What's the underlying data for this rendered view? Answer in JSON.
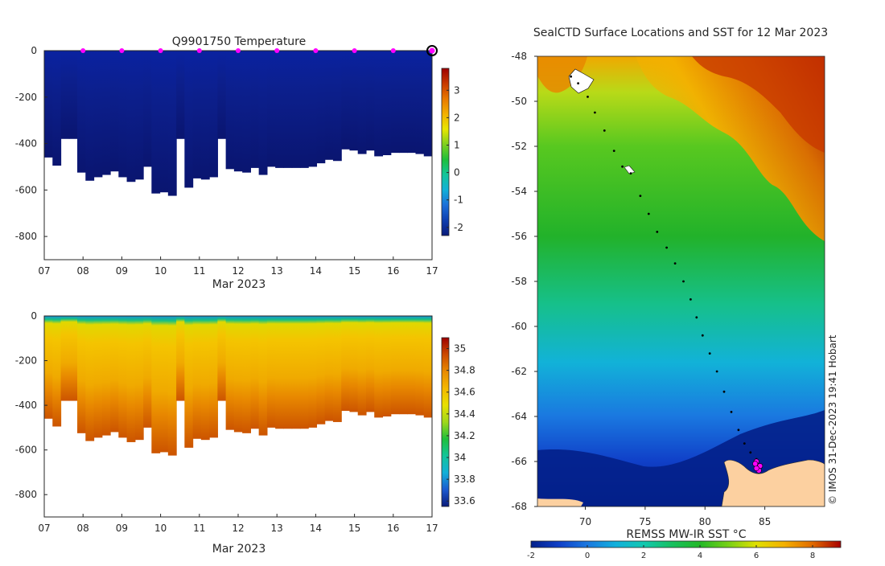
{
  "colors": {
    "temperature_ramp": [
      "#0a1a7a",
      "#0f3fb0",
      "#1c6fd9",
      "#12b0d8",
      "#12c59a",
      "#1fbf3a",
      "#7fd01e",
      "#e8e600",
      "#f2b000",
      "#e87800",
      "#c83a00",
      "#9e0000"
    ],
    "salinity_ramp": [
      "#0a1a7a",
      "#1c5ad0",
      "#12b0d8",
      "#12c59a",
      "#1fbf3a",
      "#9fd81a",
      "#e8e000",
      "#f4b800",
      "#e88a00",
      "#cc4a00",
      "#9e0000"
    ],
    "sst_ramp": [
      "#03208a",
      "#1040c8",
      "#1b78e0",
      "#12b0dc",
      "#12c8b0",
      "#18c060",
      "#22b826",
      "#76d016",
      "#e0e000",
      "#f4b000",
      "#e06a00",
      "#a80000"
    ],
    "land": "#fcd0a0",
    "marker": "#ff00ff",
    "track": "#000000",
    "background": "#ffffff"
  },
  "chart_data": [
    {
      "id": "temperature",
      "type": "heatmap",
      "title": "Q9901750  Temperature",
      "xlabel": "Mar 2023",
      "ylabel": "",
      "x_ticks": [
        "07",
        "08",
        "09",
        "10",
        "11",
        "12",
        "13",
        "14",
        "15",
        "16",
        "17"
      ],
      "y_ticks": [
        "0",
        "-200",
        "-400",
        "-600",
        "-800"
      ],
      "y_tick_values": [
        0,
        -200,
        -400,
        -600,
        -800
      ],
      "xlim": [
        7,
        17
      ],
      "ylim": [
        -900,
        0
      ],
      "profile_bottom_depths": [
        460,
        495,
        380,
        380,
        525,
        560,
        545,
        535,
        520,
        545,
        565,
        555,
        500,
        615,
        610,
        625,
        380,
        590,
        550,
        555,
        545,
        380,
        510,
        520,
        525,
        505,
        535,
        500,
        505,
        505,
        505,
        505,
        500,
        485,
        470,
        475,
        425,
        430,
        445,
        430,
        455,
        450,
        440,
        440,
        440,
        445,
        455
      ],
      "surface_markers_day": [
        8,
        9,
        10,
        11,
        12,
        13,
        14,
        15,
        16,
        17
      ],
      "colorbar": {
        "ticks": [
          "3",
          "2",
          "1",
          "0",
          "-1",
          "-2"
        ],
        "tick_values": [
          3,
          2,
          1,
          0,
          -1,
          -2
        ],
        "range": [
          -2.3,
          3.8
        ]
      }
    },
    {
      "id": "salinity",
      "type": "heatmap",
      "title": "",
      "xlabel": "Mar 2023",
      "ylabel": "",
      "x_ticks": [
        "07",
        "08",
        "09",
        "10",
        "11",
        "12",
        "13",
        "14",
        "15",
        "16",
        "17"
      ],
      "y_ticks": [
        "0",
        "-200",
        "-400",
        "-600",
        "-800"
      ],
      "y_tick_values": [
        0,
        -200,
        -400,
        -600,
        -800
      ],
      "xlim": [
        7,
        17
      ],
      "ylim": [
        -900,
        0
      ],
      "profile_bottom_depths": [
        460,
        495,
        380,
        380,
        525,
        560,
        545,
        535,
        520,
        545,
        565,
        555,
        500,
        615,
        610,
        625,
        380,
        590,
        550,
        555,
        545,
        380,
        510,
        520,
        525,
        505,
        535,
        500,
        505,
        505,
        505,
        505,
        500,
        485,
        470,
        475,
        425,
        430,
        445,
        430,
        455,
        450,
        440,
        440,
        440,
        445,
        455
      ],
      "colorbar": {
        "ticks": [
          "35",
          "34.8",
          "34.6",
          "34.4",
          "34.2",
          "34",
          "33.8",
          "33.6"
        ],
        "tick_values": [
          35,
          34.8,
          34.6,
          34.4,
          34.2,
          34,
          33.8,
          33.6
        ],
        "range": [
          33.55,
          35.1
        ]
      }
    },
    {
      "id": "sst_map",
      "type": "heatmap",
      "title": "SealCTD Surface Locations and SST for 12 Mar 2023",
      "xlabel": "",
      "ylabel": "",
      "x_ticks": [
        "70",
        "75",
        "80",
        "85"
      ],
      "x_tick_values": [
        70,
        75,
        80,
        85
      ],
      "y_ticks": [
        "-48",
        "-50",
        "-52",
        "-54",
        "-56",
        "-58",
        "-60",
        "-62",
        "-64",
        "-66",
        "-68"
      ],
      "y_tick_values": [
        -48,
        -50,
        -52,
        -54,
        -56,
        -58,
        -60,
        -62,
        -64,
        -66,
        -68
      ],
      "xlim": [
        66,
        90
      ],
      "ylim": [
        -68,
        -48
      ],
      "track_lon": [
        68.8,
        69.4,
        70.2,
        70.8,
        71.6,
        72.4,
        73.1,
        73.8,
        74.6,
        75.3,
        76.0,
        76.8,
        77.5,
        78.2,
        78.8,
        79.3,
        79.8,
        80.4,
        81.0,
        81.6,
        82.2,
        82.8,
        83.3,
        83.8,
        84.3,
        84.4
      ],
      "track_lat": [
        -48.9,
        -49.2,
        -49.8,
        -50.5,
        -51.3,
        -52.2,
        -52.9,
        -53.2,
        -54.2,
        -55.0,
        -55.8,
        -56.5,
        -57.2,
        -58.0,
        -58.8,
        -59.6,
        -60.4,
        -61.2,
        -62.0,
        -62.9,
        -63.8,
        -64.6,
        -65.2,
        -65.6,
        -65.9,
        -66.0
      ],
      "highlight_lon": [
        84.3,
        84.6,
        84.5,
        84.3,
        84.2
      ],
      "highlight_lat": [
        -66.0,
        -66.2,
        -66.4,
        -66.3,
        -66.1
      ],
      "colorbar": {
        "label": "REMSS MW-IR SST °C",
        "ticks": [
          "-2",
          "0",
          "2",
          "4",
          "6",
          "8"
        ],
        "tick_values": [
          -2,
          0,
          2,
          4,
          6,
          8
        ],
        "range": [
          -2,
          9
        ]
      }
    }
  ],
  "credit": "© IMOS 31-Dec-2023 19:41 Hobart"
}
